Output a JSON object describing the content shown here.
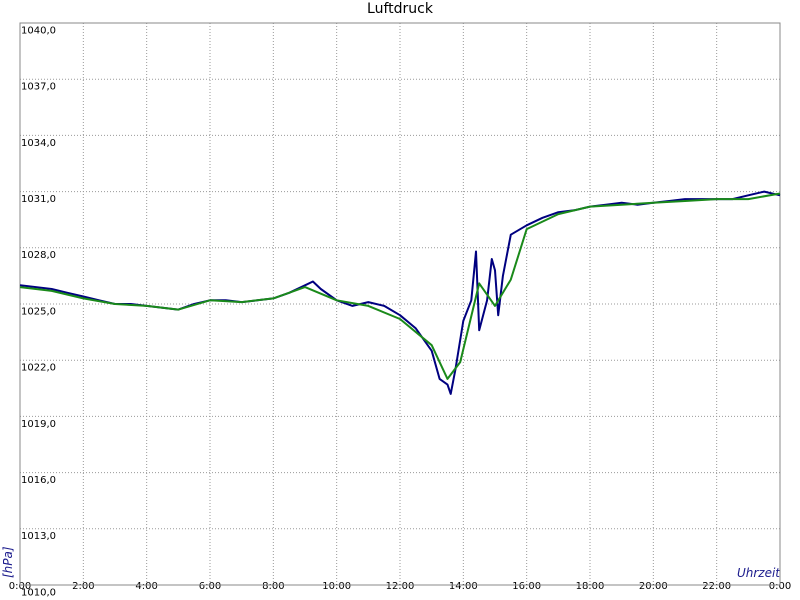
{
  "chart_data": {
    "type": "line",
    "title": "Luftdruck",
    "xlabel": "Uhrzeit",
    "ylabel": "[hPa]",
    "xlim": [
      0,
      24
    ],
    "ylim": [
      1010,
      1040
    ],
    "grid": true,
    "xticks": [
      {
        "value": 0,
        "label": "0:00"
      },
      {
        "value": 2,
        "label": "2:00"
      },
      {
        "value": 4,
        "label": "4:00"
      },
      {
        "value": 6,
        "label": "6:00"
      },
      {
        "value": 8,
        "label": "8:00"
      },
      {
        "value": 10,
        "label": "10:00"
      },
      {
        "value": 12,
        "label": "12:00"
      },
      {
        "value": 14,
        "label": "14:00"
      },
      {
        "value": 16,
        "label": "16:00"
      },
      {
        "value": 18,
        "label": "18:00"
      },
      {
        "value": 20,
        "label": "20:00"
      },
      {
        "value": 22,
        "label": "22:00"
      },
      {
        "value": 24,
        "label": "0:00"
      }
    ],
    "yticks": [
      {
        "value": 1010,
        "label": "1010,0"
      },
      {
        "value": 1013,
        "label": "1013,0"
      },
      {
        "value": 1016,
        "label": "1016,0"
      },
      {
        "value": 1019,
        "label": "1019,0"
      },
      {
        "value": 1022,
        "label": "1022,0"
      },
      {
        "value": 1025,
        "label": "1025,0"
      },
      {
        "value": 1028,
        "label": "1028,0"
      },
      {
        "value": 1031,
        "label": "1031,0"
      },
      {
        "value": 1034,
        "label": "1034,0"
      },
      {
        "value": 1037,
        "label": "1037,0"
      },
      {
        "value": 1040,
        "label": "1040,0"
      }
    ],
    "series": [
      {
        "color": "#000080",
        "x": [
          0,
          0.5,
          1,
          1.5,
          2,
          2.5,
          3,
          3.5,
          4,
          4.5,
          5,
          5.5,
          6,
          6.5,
          7,
          7.5,
          8,
          8.5,
          9,
          9.25,
          9.5,
          10,
          10.5,
          11,
          11.5,
          12,
          12.5,
          13,
          13.25,
          13.5,
          13.6,
          13.75,
          14,
          14.25,
          14.4,
          14.5,
          14.75,
          14.9,
          15,
          15.1,
          15.25,
          15.5,
          16,
          16.5,
          17,
          17.5,
          18,
          18.5,
          19,
          19.5,
          20,
          20.5,
          21,
          21.5,
          22,
          22.5,
          23,
          23.5,
          24
        ],
        "values": [
          1026.0,
          1025.9,
          1025.8,
          1025.6,
          1025.4,
          1025.2,
          1025.0,
          1025.0,
          1024.9,
          1024.8,
          1024.7,
          1025.0,
          1025.2,
          1025.2,
          1025.1,
          1025.2,
          1025.3,
          1025.6,
          1026.0,
          1026.2,
          1025.8,
          1025.2,
          1024.9,
          1025.1,
          1024.9,
          1024.4,
          1023.7,
          1022.5,
          1021.0,
          1020.7,
          1020.2,
          1021.5,
          1024.1,
          1025.2,
          1027.8,
          1023.6,
          1025.2,
          1027.4,
          1026.8,
          1024.4,
          1026.5,
          1028.7,
          1029.2,
          1029.6,
          1029.9,
          1030.0,
          1030.2,
          1030.3,
          1030.4,
          1030.3,
          1030.4,
          1030.5,
          1030.6,
          1030.6,
          1030.6,
          1030.6,
          1030.8,
          1031.0,
          1030.8
        ]
      },
      {
        "color": "#1a8a1a",
        "x": [
          0,
          1,
          2,
          3,
          4,
          5,
          6,
          7,
          8,
          9,
          10,
          11,
          12,
          13,
          13.5,
          13.9,
          14.5,
          15,
          15.5,
          16,
          17,
          18,
          19,
          20,
          21,
          22,
          23,
          24
        ],
        "values": [
          1025.9,
          1025.7,
          1025.3,
          1025.0,
          1024.9,
          1024.7,
          1025.2,
          1025.1,
          1025.3,
          1025.9,
          1025.2,
          1024.9,
          1024.2,
          1022.8,
          1021.0,
          1021.9,
          1026.1,
          1024.9,
          1026.3,
          1029.0,
          1029.8,
          1030.2,
          1030.3,
          1030.4,
          1030.5,
          1030.6,
          1030.6,
          1030.9
        ]
      }
    ]
  }
}
